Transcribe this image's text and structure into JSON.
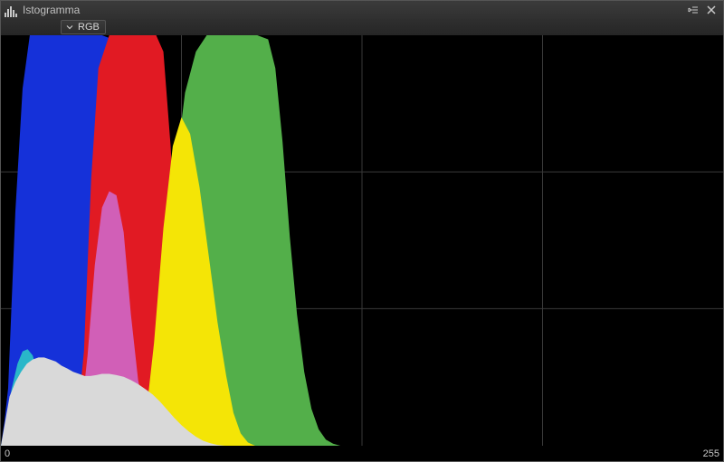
{
  "window": {
    "title": "Istogramma"
  },
  "toolbar": {
    "channel_selector": {
      "selected_label": "RGB",
      "options": [
        "RGB"
      ]
    }
  },
  "axis": {
    "min_label": "0",
    "max_label": "255",
    "xlim": [
      0,
      255
    ]
  },
  "histogram": {
    "type": "histogram",
    "background_color": "#000000",
    "grid_color": "#3a3a3a",
    "grid": {
      "vlines": [
        0.25,
        0.5,
        0.75
      ],
      "hlines": [
        0.333,
        0.666
      ]
    },
    "channels": [
      {
        "name": "blue",
        "color": "#1531d9",
        "points": [
          [
            0.0,
            0.0
          ],
          [
            0.005,
            0.06
          ],
          [
            0.01,
            0.14
          ],
          [
            0.02,
            0.57
          ],
          [
            0.03,
            0.87
          ],
          [
            0.04,
            1.0
          ],
          [
            0.06,
            1.0
          ],
          [
            0.09,
            1.0
          ],
          [
            0.12,
            1.0
          ],
          [
            0.14,
            1.0
          ],
          [
            0.155,
            0.99
          ],
          [
            0.165,
            0.82
          ],
          [
            0.175,
            0.52
          ],
          [
            0.185,
            0.29
          ],
          [
            0.195,
            0.14
          ],
          [
            0.205,
            0.06
          ],
          [
            0.215,
            0.02
          ],
          [
            0.225,
            0.005
          ],
          [
            0.235,
            0.0
          ]
        ]
      },
      {
        "name": "red",
        "color": "#e11a23",
        "points": [
          [
            0.095,
            0.0
          ],
          [
            0.105,
            0.05
          ],
          [
            0.115,
            0.23
          ],
          [
            0.125,
            0.65
          ],
          [
            0.135,
            0.92
          ],
          [
            0.15,
            1.0
          ],
          [
            0.175,
            1.0
          ],
          [
            0.2,
            1.0
          ],
          [
            0.215,
            1.0
          ],
          [
            0.225,
            0.96
          ],
          [
            0.235,
            0.73
          ],
          [
            0.245,
            0.4
          ],
          [
            0.255,
            0.18
          ],
          [
            0.265,
            0.07
          ],
          [
            0.275,
            0.02
          ],
          [
            0.285,
            0.0
          ]
        ]
      },
      {
        "name": "green",
        "color": "#53af4a",
        "points": [
          [
            0.18,
            0.0
          ],
          [
            0.195,
            0.03
          ],
          [
            0.21,
            0.12
          ],
          [
            0.225,
            0.35
          ],
          [
            0.24,
            0.65
          ],
          [
            0.255,
            0.86
          ],
          [
            0.27,
            0.96
          ],
          [
            0.285,
            1.0
          ],
          [
            0.305,
            1.0
          ],
          [
            0.33,
            1.0
          ],
          [
            0.355,
            1.0
          ],
          [
            0.37,
            0.99
          ],
          [
            0.38,
            0.92
          ],
          [
            0.39,
            0.74
          ],
          [
            0.4,
            0.51
          ],
          [
            0.41,
            0.32
          ],
          [
            0.42,
            0.18
          ],
          [
            0.43,
            0.09
          ],
          [
            0.44,
            0.04
          ],
          [
            0.45,
            0.015
          ],
          [
            0.46,
            0.005
          ],
          [
            0.47,
            0.0
          ]
        ]
      },
      {
        "name": "magenta_overlap",
        "color": "#d15fb7",
        "points": [
          [
            0.1,
            0.0
          ],
          [
            0.11,
            0.06
          ],
          [
            0.12,
            0.22
          ],
          [
            0.13,
            0.44
          ],
          [
            0.14,
            0.58
          ],
          [
            0.15,
            0.62
          ],
          [
            0.16,
            0.61
          ],
          [
            0.17,
            0.52
          ],
          [
            0.18,
            0.32
          ],
          [
            0.19,
            0.16
          ],
          [
            0.2,
            0.07
          ],
          [
            0.21,
            0.02
          ],
          [
            0.22,
            0.0
          ]
        ]
      },
      {
        "name": "yellow_overlap",
        "color": "#f4e506",
        "points": [
          [
            0.19,
            0.0
          ],
          [
            0.2,
            0.06
          ],
          [
            0.212,
            0.25
          ],
          [
            0.225,
            0.53
          ],
          [
            0.238,
            0.73
          ],
          [
            0.25,
            0.8
          ],
          [
            0.262,
            0.76
          ],
          [
            0.275,
            0.63
          ],
          [
            0.288,
            0.46
          ],
          [
            0.3,
            0.3
          ],
          [
            0.312,
            0.17
          ],
          [
            0.322,
            0.08
          ],
          [
            0.332,
            0.03
          ],
          [
            0.342,
            0.008
          ],
          [
            0.352,
            0.0
          ]
        ]
      },
      {
        "name": "cyan_overlap",
        "color": "#29b7c9",
        "points": [
          [
            0.0,
            0.0
          ],
          [
            0.007,
            0.06
          ],
          [
            0.015,
            0.14
          ],
          [
            0.023,
            0.2
          ],
          [
            0.03,
            0.23
          ],
          [
            0.037,
            0.235
          ],
          [
            0.044,
            0.22
          ],
          [
            0.051,
            0.18
          ],
          [
            0.058,
            0.13
          ],
          [
            0.065,
            0.075
          ],
          [
            0.072,
            0.03
          ],
          [
            0.08,
            0.0
          ]
        ]
      },
      {
        "name": "luma",
        "color": "#d9d9d9",
        "points": [
          [
            0.0,
            0.0
          ],
          [
            0.006,
            0.06
          ],
          [
            0.012,
            0.12
          ],
          [
            0.02,
            0.155
          ],
          [
            0.028,
            0.18
          ],
          [
            0.036,
            0.2
          ],
          [
            0.044,
            0.21
          ],
          [
            0.052,
            0.215
          ],
          [
            0.06,
            0.215
          ],
          [
            0.068,
            0.21
          ],
          [
            0.076,
            0.205
          ],
          [
            0.084,
            0.195
          ],
          [
            0.092,
            0.188
          ],
          [
            0.1,
            0.18
          ],
          [
            0.108,
            0.175
          ],
          [
            0.116,
            0.17
          ],
          [
            0.124,
            0.17
          ],
          [
            0.132,
            0.172
          ],
          [
            0.14,
            0.175
          ],
          [
            0.15,
            0.175
          ],
          [
            0.16,
            0.172
          ],
          [
            0.17,
            0.168
          ],
          [
            0.18,
            0.16
          ],
          [
            0.19,
            0.15
          ],
          [
            0.2,
            0.138
          ],
          [
            0.21,
            0.125
          ],
          [
            0.22,
            0.108
          ],
          [
            0.23,
            0.088
          ],
          [
            0.24,
            0.068
          ],
          [
            0.25,
            0.05
          ],
          [
            0.26,
            0.035
          ],
          [
            0.27,
            0.022
          ],
          [
            0.28,
            0.012
          ],
          [
            0.29,
            0.006
          ],
          [
            0.3,
            0.002
          ],
          [
            0.31,
            0.0
          ]
        ]
      }
    ]
  },
  "colors": {
    "panel_bg": "#000000",
    "frame_border": "#555555",
    "titlebar_text": "#bfbfbf",
    "axis_text": "#c8c8c8"
  }
}
